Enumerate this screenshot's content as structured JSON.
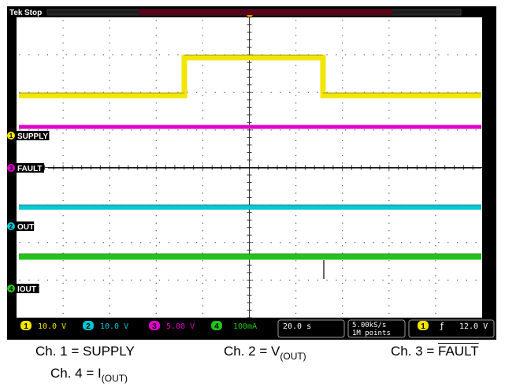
{
  "header": {
    "brand": "Tek",
    "state": "Stop"
  },
  "channels": [
    {
      "id": "1",
      "marker": "1",
      "label": "SUPPLY",
      "color": "#f2e600"
    },
    {
      "id": "3",
      "marker": "3",
      "label": "FAULT",
      "color": "#e000c8"
    },
    {
      "id": "2",
      "marker": "2",
      "label": "OUT",
      "color": "#00c8d6"
    },
    {
      "id": "4",
      "marker": "4",
      "label": "IOUT",
      "color": "#22c41a"
    }
  ],
  "status_bar": {
    "ch1": {
      "num": "1",
      "scale": "10.0 V"
    },
    "ch2": {
      "num": "2",
      "scale": "10.0 V"
    },
    "ch3": {
      "num": "3",
      "scale": "5.00 V"
    },
    "ch4": {
      "num": "4",
      "scale": "100mA"
    },
    "timebase": "20.0 s",
    "sample_rate": "5.00kS/s",
    "record_length": "1M points",
    "trigger_source": "1",
    "trigger_slope": "ƒ",
    "trigger_level": "12.0 V"
  },
  "captions": {
    "c1": "Ch. 1 = SUPPLY",
    "c2_main": "Ch. 2 = V",
    "c2_sub": "(OUT)",
    "c3_main": "Ch. 3 = ",
    "c3_over": "FAULT",
    "c4_main": "Ch. 4 = I",
    "c4_sub": "(OUT)"
  },
  "colors": {
    "screen_bg": "#ffffff",
    "frame": "#000000",
    "grid": "#555555",
    "ch1": "#f2e600",
    "ch2": "#00c8d6",
    "ch3": "#e000c8",
    "ch4": "#22c41a"
  }
}
